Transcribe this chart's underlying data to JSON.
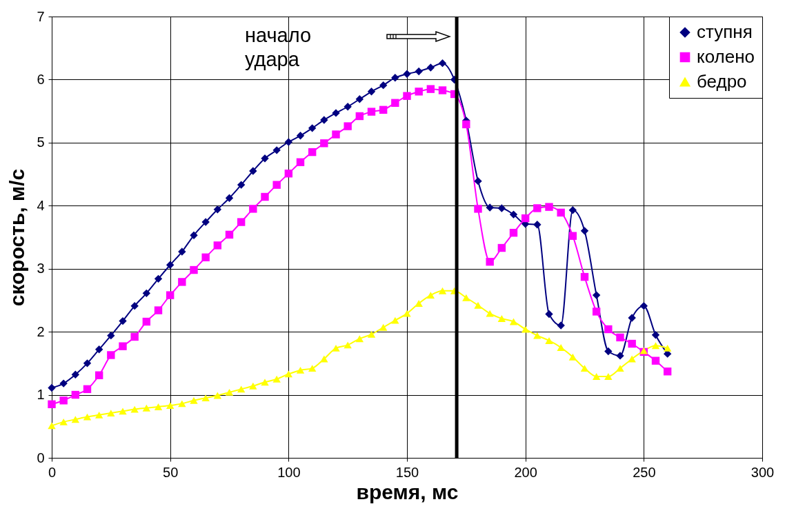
{
  "chart_data": {
    "type": "line",
    "xlabel": "время, мс",
    "ylabel": "скорость, м/с",
    "x": [
      0,
      5,
      10,
      15,
      20,
      25,
      30,
      35,
      40,
      45,
      50,
      55,
      60,
      65,
      70,
      75,
      80,
      85,
      90,
      95,
      100,
      105,
      110,
      115,
      120,
      125,
      130,
      135,
      140,
      145,
      150,
      155,
      160,
      165,
      170,
      175,
      180,
      185,
      190,
      195,
      200,
      205,
      210,
      215,
      220,
      225,
      230,
      235,
      240,
      245,
      250,
      255,
      260
    ],
    "series": [
      {
        "name": "ступня",
        "color": "#000080",
        "marker": "diamond",
        "values": [
          1.11,
          1.18,
          1.32,
          1.5,
          1.72,
          1.94,
          2.17,
          2.41,
          2.61,
          2.84,
          3.06,
          3.27,
          3.53,
          3.74,
          3.94,
          4.12,
          4.33,
          4.55,
          4.75,
          4.88,
          5.01,
          5.11,
          5.23,
          5.36,
          5.47,
          5.57,
          5.69,
          5.81,
          5.91,
          6.03,
          6.09,
          6.13,
          6.19,
          6.26,
          6.0,
          5.35,
          4.39,
          3.97,
          3.96,
          3.86,
          3.71,
          3.7,
          2.28,
          2.1,
          3.93,
          3.6,
          2.58,
          1.69,
          1.62,
          2.22,
          2.41,
          1.95,
          1.65
        ]
      },
      {
        "name": "колено",
        "color": "#ff00ff",
        "marker": "square",
        "values": [
          0.85,
          0.91,
          1.0,
          1.09,
          1.31,
          1.63,
          1.77,
          1.92,
          2.16,
          2.34,
          2.58,
          2.79,
          2.98,
          3.18,
          3.37,
          3.54,
          3.74,
          3.95,
          4.14,
          4.33,
          4.51,
          4.69,
          4.85,
          4.99,
          5.13,
          5.26,
          5.42,
          5.49,
          5.52,
          5.63,
          5.74,
          5.81,
          5.85,
          5.83,
          5.77,
          5.29,
          3.95,
          3.11,
          3.33,
          3.57,
          3.8,
          3.96,
          3.98,
          3.89,
          3.52,
          2.87,
          2.32,
          2.04,
          1.91,
          1.81,
          1.68,
          1.54,
          1.37
        ]
      },
      {
        "name": "бедро",
        "color": "#ffff00",
        "marker": "triangle",
        "values": [
          0.51,
          0.57,
          0.61,
          0.65,
          0.68,
          0.71,
          0.74,
          0.77,
          0.79,
          0.81,
          0.83,
          0.86,
          0.91,
          0.95,
          0.99,
          1.04,
          1.09,
          1.14,
          1.2,
          1.25,
          1.33,
          1.39,
          1.42,
          1.57,
          1.74,
          1.79,
          1.89,
          1.96,
          2.07,
          2.18,
          2.29,
          2.45,
          2.58,
          2.65,
          2.65,
          2.54,
          2.42,
          2.29,
          2.21,
          2.16,
          2.04,
          1.94,
          1.86,
          1.75,
          1.6,
          1.42,
          1.29,
          1.29,
          1.42,
          1.57,
          1.7,
          1.78,
          1.74
        ]
      }
    ],
    "xlim": [
      0,
      300
    ],
    "xticks": [
      0,
      50,
      100,
      150,
      200,
      250,
      300
    ],
    "ylim": [
      0,
      7
    ],
    "yticks": [
      0,
      1,
      2,
      3,
      4,
      5,
      6,
      7
    ],
    "grid": true,
    "legend": "top right",
    "ref_lines": [
      {
        "axis": "x",
        "value": 171,
        "color": "#000000"
      }
    ],
    "annotations": [
      "начало удара"
    ]
  }
}
